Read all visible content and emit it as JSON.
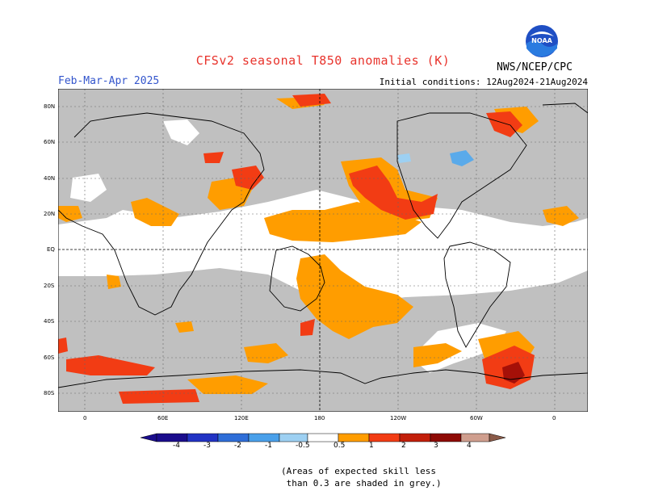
{
  "title": "CFSv2 seasonal T850 anomalies (K)",
  "season": "Feb-Mar-Apr 2025",
  "initial_conditions": "Initial conditions: 12Aug2024-21Aug2024",
  "agency": "NWS/NCEP/CPC",
  "logo_text": "NOAA",
  "lat_labels": [
    "80N",
    "60N",
    "40N",
    "20N",
    "EQ",
    "20S",
    "40S",
    "60S",
    "80S"
  ],
  "lon_labels": [
    "0",
    "60E",
    "120E",
    "180",
    "120W",
    "60W",
    "0"
  ],
  "colorbar": {
    "labels": [
      "-4",
      "-3",
      "-2",
      "-1",
      "-0.5",
      "0.5",
      "1",
      "2",
      "3",
      "4"
    ],
    "colors": [
      "#1a0d8c",
      "#2233c4",
      "#2f6ed8",
      "#4aa0ea",
      "#9dd0f2",
      "#ffffff",
      "#ff9d00",
      "#f23c14",
      "#c21f0a",
      "#8e0a05",
      "#cf9e8e",
      "#8a5a48"
    ]
  },
  "skill_note": "(Areas of expected skill less\n than 0.3 are shaded in grey.)",
  "colors": {
    "grey": "#c0c0c0",
    "orange": "#ff9d00",
    "red": "#f23c14",
    "darkred": "#a51008",
    "blue": "#5aaaea"
  }
}
